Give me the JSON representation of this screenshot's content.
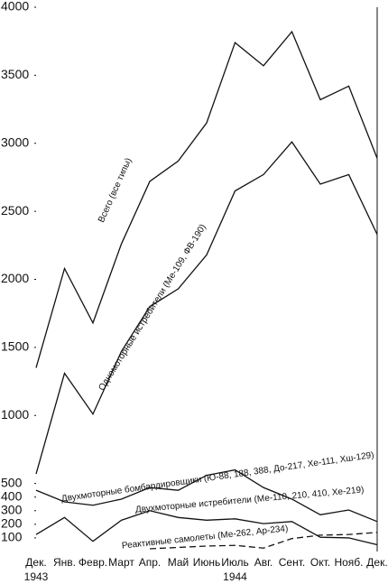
{
  "chart_data": {
    "type": "line",
    "categories": [
      "Дек.",
      "Янв.",
      "Февр.",
      "Март",
      "Апр.",
      "Май",
      "Июнь",
      "Июль",
      "Авг.",
      "Сент.",
      "Окт.",
      "Нояб.",
      "Дек."
    ],
    "years": [
      "1943",
      "1944"
    ],
    "ylim": [
      0,
      4000
    ],
    "yticks": [
      100,
      200,
      300,
      400,
      500,
      1000,
      1500,
      2000,
      2500,
      3000,
      3500,
      4000
    ],
    "series": [
      {
        "name": "Всего (все типы)",
        "color": "#111111",
        "dash": "solid",
        "values": [
          1350,
          2080,
          1680,
          2260,
          2720,
          2870,
          3150,
          3740,
          3570,
          3820,
          3320,
          3420,
          2890
        ]
      },
      {
        "name": "Одномоторные истребители (Ме-109, ФВ-190)",
        "color": "#111111",
        "dash": "solid",
        "values": [
          570,
          1310,
          1010,
          1470,
          1800,
          1930,
          2180,
          2650,
          2770,
          3010,
          2700,
          2770,
          2330
        ]
      },
      {
        "name": "Двухмоторные бомбардировщики (Ю-88, 188, 388, До-217, Хе-111, Хш-129)",
        "color": "#111111",
        "dash": "solid",
        "values": [
          450,
          365,
          340,
          385,
          470,
          450,
          560,
          600,
          470,
          385,
          270,
          305,
          220
        ]
      },
      {
        "name": "Двухмоторные истребители (Ме-110, 210, 410, Хе-219)",
        "color": "#111111",
        "dash": "solid",
        "values": [
          125,
          250,
          75,
          230,
          300,
          250,
          230,
          240,
          205,
          220,
          105,
          100,
          50
        ]
      },
      {
        "name": "Реактивные самолеты (Ме-262, Ар-234)",
        "color": "#111111",
        "dash": "dashed",
        "values": [
          null,
          null,
          null,
          null,
          20,
          30,
          40,
          45,
          25,
          95,
          120,
          125,
          140
        ]
      }
    ]
  }
}
